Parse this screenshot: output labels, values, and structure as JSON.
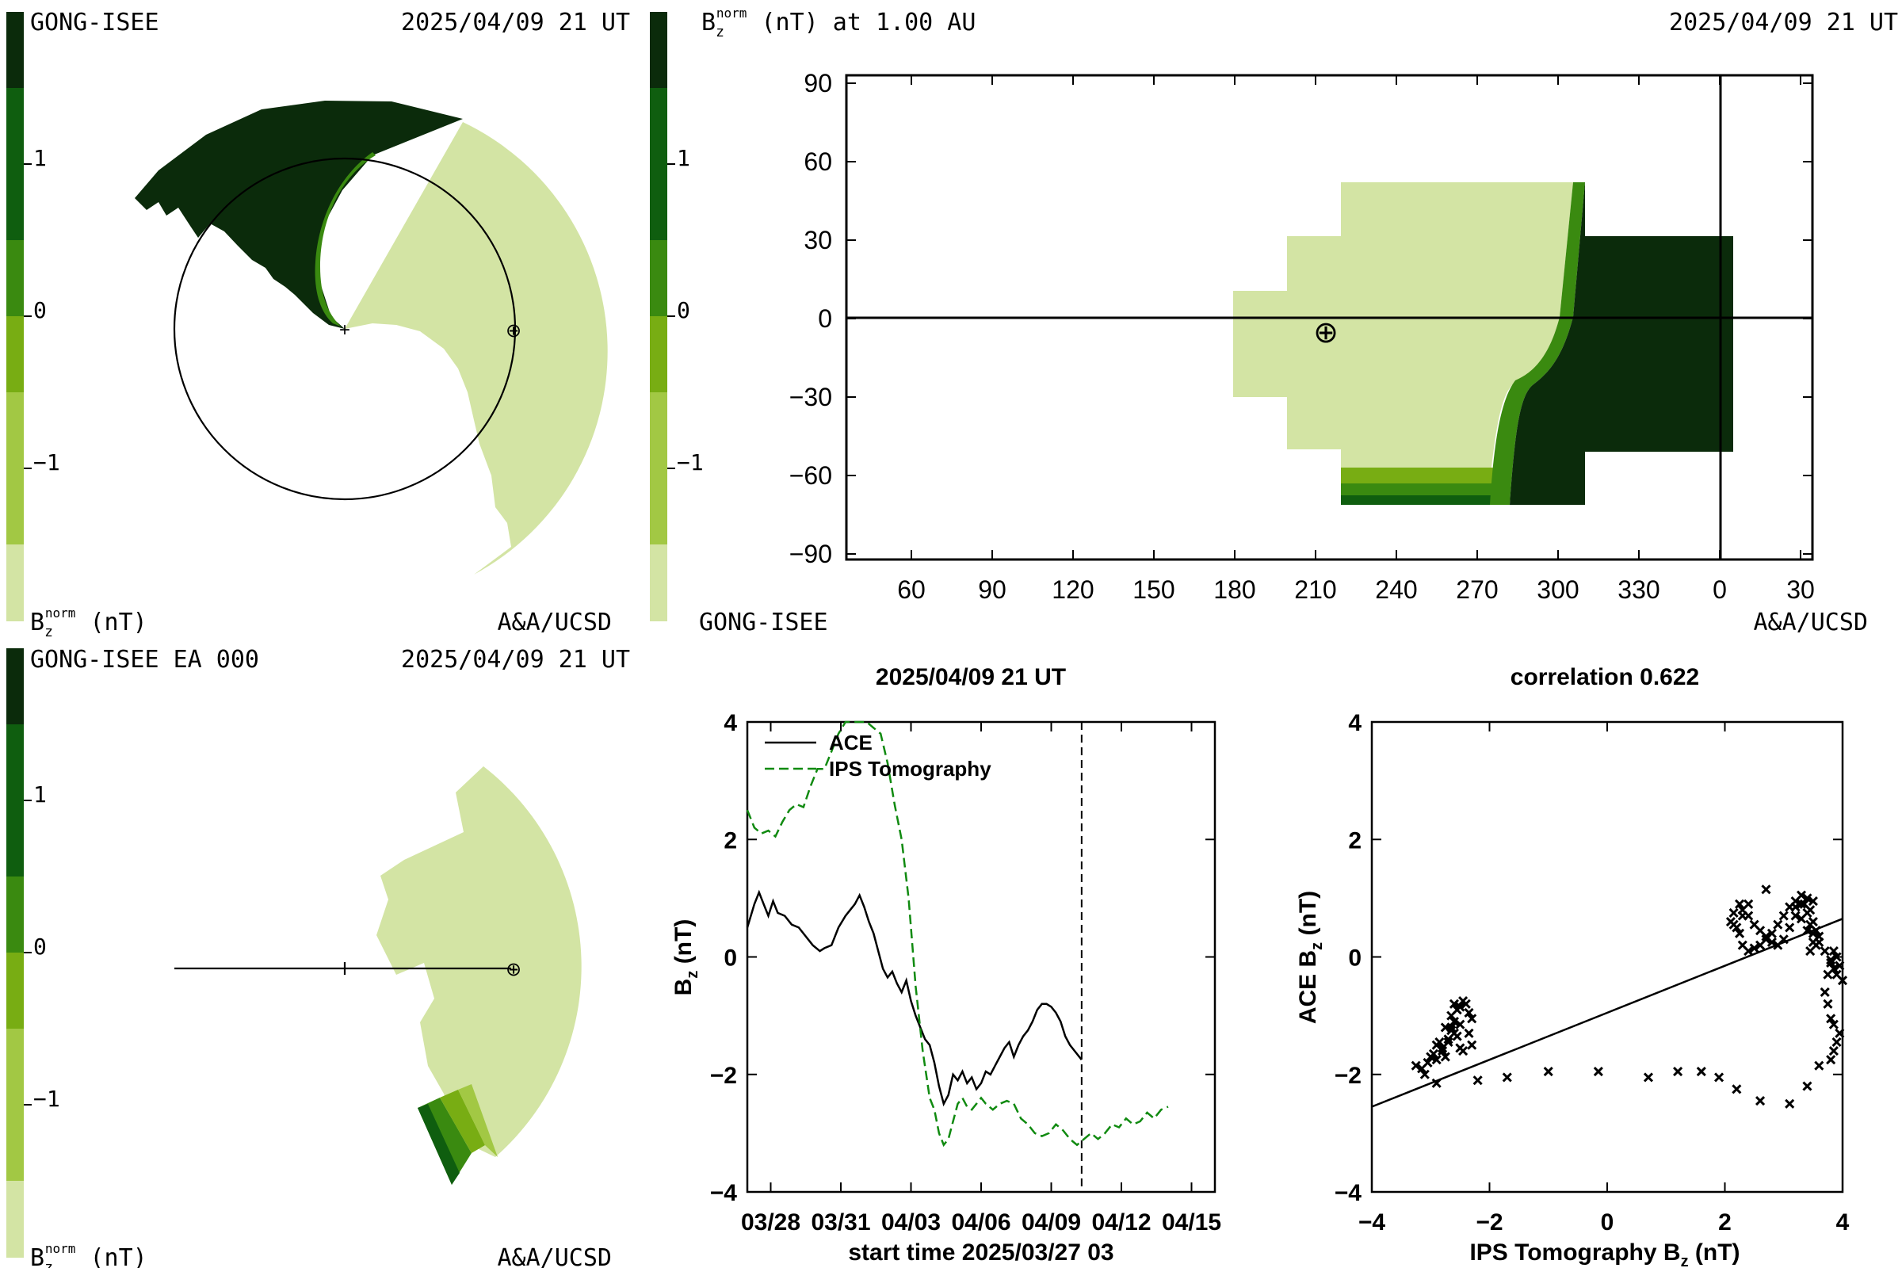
{
  "colors": {
    "very_dark_green": "#0b2b0b",
    "dark_green": "#0f5e0f",
    "mid_green": "#3a8a10",
    "olive_green": "#78ad13",
    "light_green": "#a2c844",
    "pale_green": "#d3e4a4",
    "ips_dashed": "#108a10",
    "ink": "#000000"
  },
  "colorbar": {
    "ticks": [
      {
        "label": "1"
      },
      {
        "label": "0"
      },
      {
        "label": "−1"
      }
    ]
  },
  "panel_tl": {
    "source": "GONG-ISEE",
    "date": "2025/04/09 21 UT",
    "unit_label": "B",
    "unit_sub": "z",
    "unit_sup": "norm",
    "unit_rest": " (nT)",
    "credit": "A&A/UCSD",
    "sun_marker": "+",
    "earth_marker": "⊕"
  },
  "panel_bl": {
    "source": "GONG-ISEE EA 000",
    "date": "2025/04/09 21 UT",
    "unit_label": "B",
    "unit_sub": "z",
    "unit_sup": "norm",
    "unit_rest": " (nT)",
    "credit": "A&A/UCSD",
    "earth_marker": "⊕"
  },
  "panel_tr": {
    "title_label": "B",
    "title_sub": "z",
    "title_sup": "norm",
    "title_rest": " (nT) at 1.00 AU",
    "date": "2025/04/09 21 UT",
    "source": "GONG-ISEE",
    "credit": "A&A/UCSD",
    "earth_marker": "⊕",
    "chart_data": {
      "type": "heatmap",
      "x_tick_labels": [
        "60",
        "90",
        "120",
        "150",
        "180",
        "210",
        "240",
        "270",
        "300",
        "330",
        "0",
        "30"
      ],
      "y_tick_labels": [
        "90",
        "60",
        "30",
        "0",
        "−30",
        "−60",
        "−90"
      ],
      "ylim": [
        -90,
        90
      ],
      "earth_position": {
        "longitude": 215,
        "latitude": -6
      }
    }
  },
  "panel_br_left": {
    "title": "2025/04/09 21 UT",
    "ylabel_main": "B",
    "ylabel_sub": "z",
    "ylabel_rest": " (nT)",
    "xlabel": "start time 2025/03/27 03",
    "chart_data": {
      "type": "line",
      "x_tick_labels": [
        "03/28",
        "03/31",
        "04/03",
        "04/06",
        "04/09",
        "04/12",
        "04/15"
      ],
      "x_tick_days": [
        1,
        4,
        7,
        10,
        13,
        16,
        19
      ],
      "y_tick_labels": [
        "4",
        "2",
        "0",
        "−2",
        "−4"
      ],
      "xlim_days": [
        0,
        20
      ],
      "ylim": [
        -4,
        4
      ],
      "marker_day": 14.3,
      "series": [
        {
          "name": "ACE",
          "style": "solid",
          "color": "#000000",
          "x": [
            0,
            0.3,
            0.5,
            0.7,
            0.9,
            1.1,
            1.3,
            1.6,
            1.9,
            2.2,
            2.5,
            2.8,
            3.1,
            3.3,
            3.6,
            3.9,
            4.2,
            4.4,
            4.6,
            4.8,
            5.0,
            5.2,
            5.4,
            5.6,
            5.8,
            6.0,
            6.2,
            6.4,
            6.6,
            6.8,
            7.0,
            7.2,
            7.4,
            7.6,
            7.8,
            8.0,
            8.2,
            8.4,
            8.6,
            8.8,
            9.0,
            9.2,
            9.4,
            9.6,
            9.8,
            10.0,
            10.2,
            10.4,
            10.6,
            10.8,
            11.0,
            11.2,
            11.4,
            11.6,
            11.8,
            12.0,
            12.2,
            12.4,
            12.6,
            12.8,
            13.0,
            13.2,
            13.4,
            13.6,
            13.8,
            14.0,
            14.3
          ],
          "y": [
            0.5,
            0.9,
            1.1,
            0.9,
            0.7,
            0.95,
            0.75,
            0.7,
            0.55,
            0.5,
            0.35,
            0.2,
            0.1,
            0.15,
            0.2,
            0.5,
            0.7,
            0.8,
            0.9,
            1.05,
            0.85,
            0.6,
            0.4,
            0.1,
            -0.2,
            -0.35,
            -0.25,
            -0.45,
            -0.6,
            -0.4,
            -0.75,
            -1.0,
            -1.2,
            -1.4,
            -1.5,
            -1.8,
            -2.2,
            -2.5,
            -2.35,
            -2.0,
            -2.1,
            -1.95,
            -2.15,
            -2.05,
            -2.25,
            -2.15,
            -1.95,
            -2.0,
            -1.85,
            -1.7,
            -1.55,
            -1.45,
            -1.7,
            -1.5,
            -1.35,
            -1.25,
            -1.1,
            -0.9,
            -0.8,
            -0.8,
            -0.85,
            -0.95,
            -1.1,
            -1.35,
            -1.5,
            -1.6,
            -1.75
          ]
        },
        {
          "name": "IPS Tomography",
          "style": "dashed",
          "color": "#108a10",
          "x": [
            0,
            0.3,
            0.6,
            0.9,
            1.2,
            1.5,
            1.8,
            2.1,
            2.4,
            2.7,
            3.0,
            3.3,
            3.6,
            3.9,
            4.2,
            4.5,
            4.8,
            5.1,
            5.4,
            5.7,
            6.0,
            6.3,
            6.6,
            6.9,
            7.2,
            7.5,
            7.8,
            8.0,
            8.2,
            8.4,
            8.6,
            8.8,
            9.0,
            9.2,
            9.4,
            9.6,
            9.8,
            10.0,
            10.2,
            10.5,
            10.8,
            11.1,
            11.4,
            11.7,
            12.0,
            12.3,
            12.6,
            12.9,
            13.2,
            13.5,
            13.8,
            14.1,
            14.4,
            14.7,
            15.0,
            15.3,
            15.6,
            15.9,
            16.2,
            16.5,
            16.8,
            17.1,
            17.4,
            17.7,
            18.0
          ],
          "y": [
            2.5,
            2.2,
            2.1,
            2.15,
            2.05,
            2.3,
            2.5,
            2.6,
            2.55,
            2.9,
            3.2,
            3.2,
            3.5,
            3.8,
            4.0,
            4.0,
            4.1,
            4.2,
            3.9,
            3.8,
            3.3,
            2.6,
            2.0,
            1.0,
            -0.5,
            -1.6,
            -2.4,
            -2.6,
            -3.0,
            -3.2,
            -3.1,
            -2.8,
            -2.5,
            -2.4,
            -2.55,
            -2.6,
            -2.5,
            -2.4,
            -2.5,
            -2.6,
            -2.5,
            -2.45,
            -2.5,
            -2.75,
            -2.85,
            -3.0,
            -3.05,
            -3.0,
            -2.85,
            -2.95,
            -3.1,
            -3.2,
            -3.1,
            -3.0,
            -3.1,
            -3.0,
            -2.85,
            -2.9,
            -2.75,
            -2.85,
            -2.8,
            -2.65,
            -2.75,
            -2.6,
            -2.55
          ]
        }
      ]
    }
  },
  "panel_br_right": {
    "title": "correlation 0.622",
    "ylabel_main": "ACE B",
    "ylabel_sub": "z",
    "ylabel_rest": " (nT)",
    "xlabel_main": "IPS Tomography B",
    "xlabel_sub": "z",
    "xlabel_rest": " (nT)",
    "chart_data": {
      "type": "scatter",
      "x_tick_labels": [
        "−4",
        "−2",
        "0",
        "2",
        "4"
      ],
      "y_tick_labels": [
        "4",
        "2",
        "0",
        "−2",
        "−4"
      ],
      "xlim": [
        -4,
        4
      ],
      "ylim": [
        -4,
        4
      ],
      "fit_line": {
        "x": [
          -4,
          4
        ],
        "y": [
          -2.55,
          0.65
        ]
      },
      "points": {
        "x": [
          -3.25,
          -3.15,
          -3.05,
          -3.0,
          -2.95,
          -2.9,
          -2.85,
          -2.8,
          -2.75,
          -2.7,
          -2.65,
          -2.6,
          -2.55,
          -2.5,
          -2.45,
          -2.4,
          -2.35,
          -2.3,
          -2.6,
          -2.5,
          -2.45,
          -2.7,
          -2.65,
          -2.8,
          -2.9,
          -3.1,
          -2.55,
          -2.35,
          -2.5,
          -2.65,
          -2.75,
          -2.3,
          -2.6,
          -2.9,
          -2.2,
          -1.7,
          -1.0,
          -0.15,
          0.7,
          1.2,
          1.6,
          1.9,
          2.2,
          2.6,
          3.1,
          3.4,
          3.6,
          3.8,
          3.85,
          3.9,
          3.95,
          3.85,
          3.8,
          3.75,
          3.7,
          3.75,
          3.8,
          3.85,
          3.9,
          4.0,
          3.95,
          3.9,
          3.85,
          3.8,
          3.7,
          3.6,
          3.5,
          3.45,
          3.4,
          3.35,
          3.3,
          3.2,
          3.1,
          3.0,
          2.9,
          2.8,
          2.7,
          2.6,
          2.5,
          2.4,
          2.3,
          2.25,
          2.2,
          2.15,
          2.1,
          2.15,
          2.25,
          2.3,
          2.4,
          2.5,
          2.6,
          2.7,
          2.8,
          2.9,
          3.0,
          3.1,
          3.2,
          3.3,
          3.4,
          3.45,
          3.5,
          3.55,
          3.6,
          3.55,
          3.5,
          3.45,
          3.4,
          3.3,
          3.2,
          2.3,
          2.4,
          2.7,
          3.5
        ],
        "y": [
          -1.85,
          -1.9,
          -1.8,
          -1.7,
          -1.65,
          -1.5,
          -1.45,
          -1.6,
          -1.7,
          -1.4,
          -1.25,
          -1.1,
          -0.9,
          -0.85,
          -0.75,
          -0.8,
          -0.95,
          -1.05,
          -1.3,
          -1.55,
          -1.6,
          -1.45,
          -1.2,
          -1.55,
          -1.75,
          -2.0,
          -1.35,
          -1.3,
          -1.15,
          -1.0,
          -1.2,
          -1.5,
          -0.8,
          -2.15,
          -2.1,
          -2.05,
          -1.95,
          -1.95,
          -2.05,
          -1.95,
          -1.95,
          -2.05,
          -2.25,
          -2.45,
          -2.5,
          -2.2,
          -1.85,
          -1.75,
          -1.6,
          -1.45,
          -1.3,
          -1.15,
          -1.05,
          -0.8,
          -0.6,
          -0.3,
          -0.1,
          0.1,
          0.0,
          -0.4,
          -0.15,
          -0.3,
          -0.2,
          -0.05,
          0.1,
          0.25,
          0.4,
          0.55,
          0.75,
          0.9,
          1.05,
          0.95,
          0.85,
          0.7,
          0.55,
          0.4,
          0.3,
          0.2,
          0.15,
          0.1,
          0.2,
          0.4,
          0.5,
          0.55,
          0.6,
          0.75,
          0.9,
          0.8,
          0.7,
          0.55,
          0.45,
          0.35,
          0.25,
          0.2,
          0.3,
          0.5,
          0.7,
          0.9,
          1.0,
          0.8,
          0.6,
          0.45,
          0.35,
          0.2,
          0.25,
          0.1,
          0.45,
          0.65,
          0.85,
          0.7,
          0.9,
          1.15,
          0.95
        ]
      }
    }
  }
}
